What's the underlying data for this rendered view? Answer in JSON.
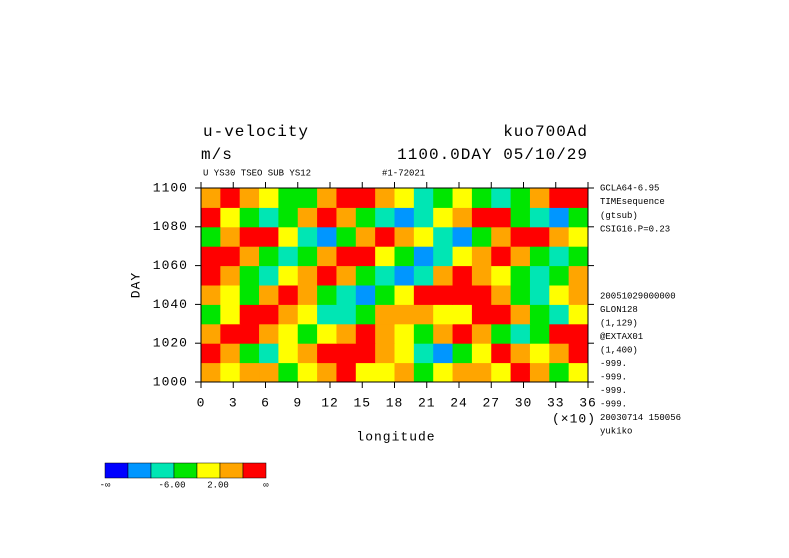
{
  "chart_data": {
    "type": "heatmap",
    "title": "u-velocity",
    "title_right": "kuo700Ad",
    "subtitle": "m/s",
    "subtitle_right": "1100.0DAY 05/10/29",
    "note_left": "U YS30 TSEO SUB YS12",
    "note_center": "#1-72021",
    "x_label": "longitude",
    "x_multiplier": "(×10)",
    "y_label": "DAY",
    "xlim": [
      0,
      36
    ],
    "xticks": [
      0,
      3,
      6,
      9,
      12,
      15,
      18,
      21,
      24,
      27,
      30,
      33,
      36
    ],
    "ylim": [
      1000,
      1100
    ],
    "yticks": [
      1000,
      1020,
      1040,
      1060,
      1080,
      1100
    ],
    "x": [
      0.9,
      2.7,
      4.5,
      6.3,
      8.1,
      9.9,
      11.7,
      13.5,
      15.3,
      17.1,
      18.9,
      20.7,
      22.5,
      24.3,
      26.1,
      27.9,
      29.7,
      31.5,
      33.3,
      35.1
    ],
    "y": [
      1005,
      1015,
      1025,
      1035,
      1045,
      1055,
      1065,
      1075,
      1085,
      1095
    ],
    "z": [
      [
        3,
        -1,
        5,
        2,
        -3,
        0,
        4,
        7,
        1,
        -2,
        3,
        -4,
        0,
        5,
        2,
        -1,
        6,
        3,
        -3,
        1
      ],
      [
        7,
        2,
        -3,
        -7,
        1,
        5,
        9,
        12,
        11,
        4,
        -2,
        -8,
        -11,
        -6,
        1,
        6,
        3,
        -2,
        4,
        8
      ],
      [
        2,
        6,
        8,
        3,
        -2,
        -6,
        -1,
        4,
        7,
        3,
        0,
        -3,
        2,
        8,
        5,
        -4,
        -9,
        -5,
        7,
        10
      ],
      [
        -4,
        1,
        6,
        9,
        4,
        -1,
        -7,
        -10,
        -4,
        2,
        5,
        3,
        -2,
        1,
        6,
        9,
        4,
        -3,
        -8,
        -2
      ],
      [
        5,
        -2,
        -6,
        2,
        7,
        3,
        -4,
        -9,
        -12,
        -6,
        1,
        6,
        11,
        14,
        9,
        2,
        -3,
        -7,
        -2,
        4
      ],
      [
        9,
        4,
        -3,
        -8,
        -2,
        5,
        8,
        3,
        -5,
        -10,
        -13,
        -7,
        2,
        7,
        4,
        -1,
        -6,
        -10,
        -4,
        3
      ],
      [
        11,
        7,
        2,
        -4,
        -9,
        -3,
        4,
        9,
        6,
        -1,
        -6,
        -11,
        -8,
        0,
        5,
        8,
        3,
        -4,
        -9,
        -5
      ],
      [
        -3,
        4,
        10,
        6,
        -2,
        -7,
        -11,
        -5,
        3,
        8,
        4,
        -2,
        -7,
        -12,
        -6,
        2,
        7,
        10,
        5,
        -1
      ],
      [
        6,
        1,
        -5,
        -10,
        -6,
        2,
        7,
        4,
        -3,
        -8,
        -14,
        -9,
        -2,
        4,
        9,
        6,
        -3,
        -8,
        -11,
        -4
      ],
      [
        2,
        8,
        5,
        -1,
        -6,
        -3,
        3,
        8,
        11,
        5,
        -2,
        -7,
        -4,
        1,
        -5,
        -10,
        -6,
        2,
        8,
        12
      ]
    ],
    "colorbar": {
      "colors": [
        "#0000ff",
        "#0096ff",
        "#00e6b4",
        "#00e600",
        "#ffff00",
        "#ffa500",
        "#ff0000"
      ],
      "levels": [
        -14,
        -10,
        -6,
        -2,
        2,
        6
      ],
      "labels": [
        {
          "value": -6,
          "label": "-6.00"
        },
        {
          "value": 2,
          "label": "2.00"
        }
      ],
      "min_label": "-∞",
      "max_label": "∞"
    },
    "side_top": [
      "GCLA64-6.95",
      "TIMEsequence",
      "(gtsub)",
      "CSIG16.P=0.23"
    ],
    "side_bottom": [
      "20051029000000",
      "GLON128",
      "(1,129)",
      "@EXTAX01",
      "(1,400)",
      "-999.",
      "-999.",
      "-999.",
      "-999.",
      "20030714 150056",
      "yukiko"
    ]
  }
}
